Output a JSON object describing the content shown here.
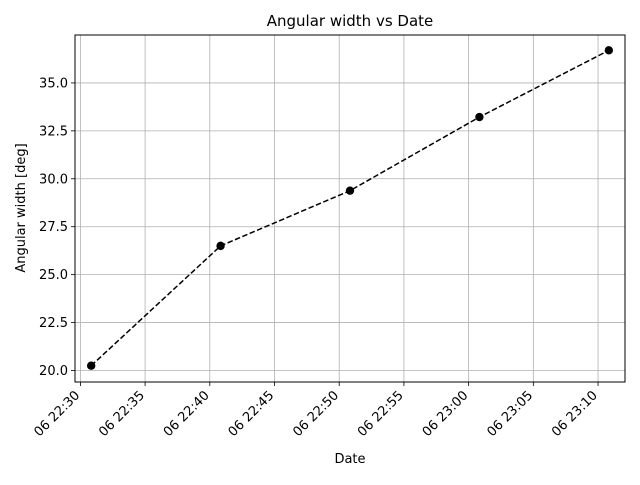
{
  "chart_data": {
    "type": "line",
    "title": "Angular width vs Date",
    "xlabel": "Date",
    "ylabel": "Angular width [deg]",
    "x": [
      "06 22:30:50",
      "06 22:40:50",
      "06 22:50:50",
      "06 23:00:50",
      "06 23:10:50"
    ],
    "series": [
      {
        "values": [
          20.25,
          26.5,
          29.38,
          33.22,
          36.7
        ]
      }
    ],
    "xticks": [
      "06 22:30",
      "06 22:35",
      "06 22:40",
      "06 22:45",
      "06 22:50",
      "06 22:55",
      "06 23:00",
      "06 23:05",
      "06 23:10"
    ],
    "yticks": [
      "20.0",
      "22.5",
      "25.0",
      "27.5",
      "30.0",
      "32.5",
      "35.0"
    ],
    "ylim": [
      19.4,
      37.5
    ],
    "xlim": [
      "06 22:29:35",
      "06 23:12:05"
    ],
    "grid": true,
    "legend": "none",
    "line_style": "dashed",
    "marker": "circle",
    "color": "#000000"
  }
}
